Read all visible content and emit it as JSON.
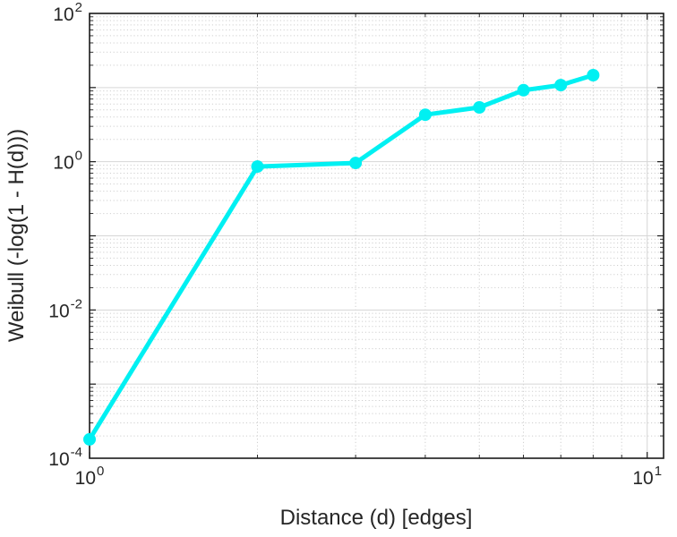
{
  "figure": {
    "background": "#ffffff",
    "axes_color": "#1a1a1a",
    "tick_label_color": "#262626",
    "grid_major_color": "#d6d6d6",
    "grid_minor_color": "#cfcfcf",
    "series_color": "#00f0f2",
    "tick_base": "10"
  },
  "chart_data": {
    "type": "line",
    "title": "",
    "xlabel": "Distance (d) [edges]",
    "ylabel": "Weibull (-log(1 - H(d)))",
    "x_scale": "log",
    "y_scale": "log",
    "xlim": [
      1,
      10.7
    ],
    "ylim": [
      0.0001,
      100
    ],
    "x": [
      1,
      2,
      3,
      4,
      5,
      6,
      7,
      8
    ],
    "y": [
      0.00018,
      0.86,
      0.96,
      4.3,
      5.4,
      9.2,
      10.8,
      14.7
    ],
    "x_tick_exponents": [
      0,
      1
    ],
    "y_tick_exponents": [
      2,
      0,
      -2,
      -4
    ],
    "grid": true,
    "minor_grid": true,
    "legend": null,
    "marker": "circle",
    "line_width": 5,
    "marker_radius": 7
  }
}
